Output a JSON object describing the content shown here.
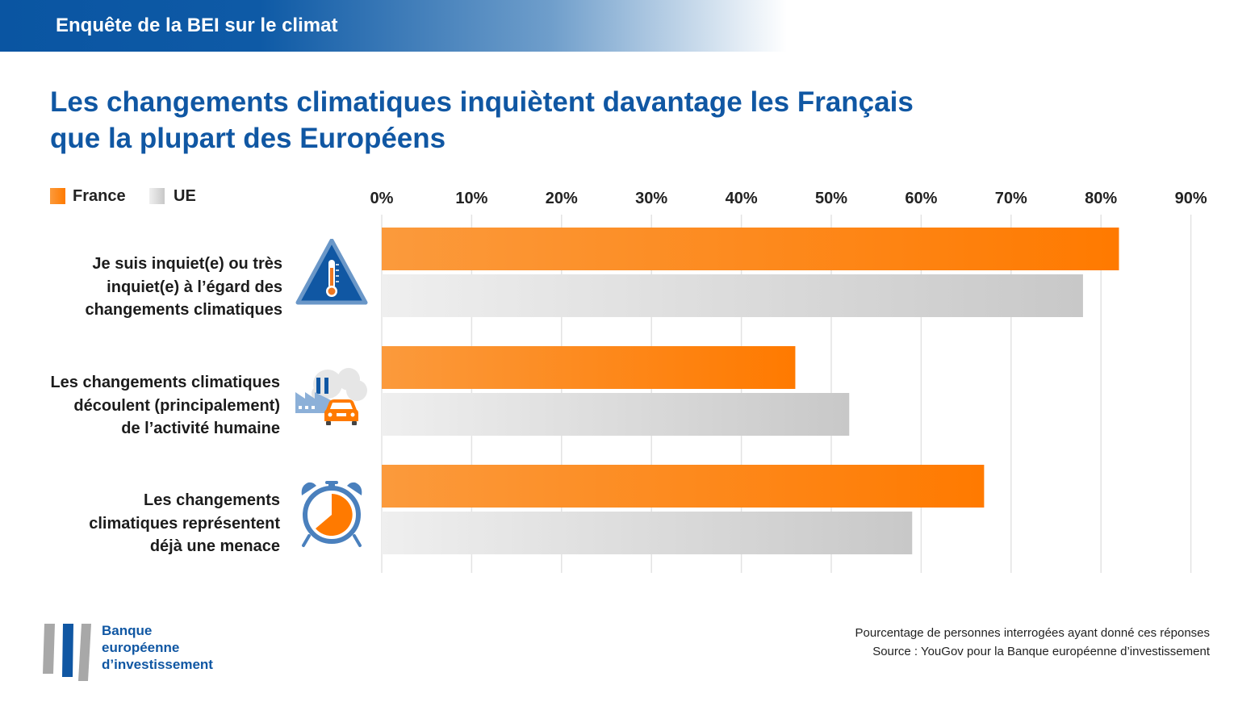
{
  "header": {
    "banner": "Enquête de la BEI sur le climat"
  },
  "title_lines": [
    "Les changements climatiques inquiètent davantage les Français",
    "que la plupart des Européens"
  ],
  "colors": {
    "france": "#ff7a00",
    "france_light": "#fb9a3c",
    "ue": "#c8c8c8",
    "ue_light": "#efefef",
    "brand": "#1057a3"
  },
  "chart_data": {
    "type": "bar",
    "orientation": "horizontal",
    "title": "Les changements climatiques inquiètent davantage les Français que la plupart des Européens",
    "categories": [
      "Je suis inquiet(e) ou très inquiet(e) à l’égard des changements climatiques",
      "Les changements climatiques découlent (principalement) de l’activité humaine",
      "Les changements climatiques représentent déjà une menace"
    ],
    "category_lines": [
      [
        "Je suis inquiet(e) ou très",
        "inquiet(e) à l’égard des",
        "changements climatiques"
      ],
      [
        "Les changements climatiques",
        "découlent (principalement)",
        "de l’activité humaine"
      ],
      [
        "Les changements",
        "climatiques représentent",
        "déjà une menace"
      ]
    ],
    "category_icons": [
      "thermometer-warning-icon",
      "factory-car-pollution-icon",
      "alarm-clock-icon"
    ],
    "series": [
      {
        "name": "France",
        "values": [
          82,
          46,
          67
        ]
      },
      {
        "name": "UE",
        "values": [
          78,
          52,
          59
        ]
      }
    ],
    "xlim": [
      0,
      90
    ],
    "ticks": [
      0,
      10,
      20,
      30,
      40,
      50,
      60,
      70,
      80,
      90
    ],
    "tick_labels": [
      "0%",
      "10%",
      "20%",
      "30%",
      "40%",
      "50%",
      "60%",
      "70%",
      "80%",
      "90%"
    ],
    "grid": true,
    "legend_position": "top-left"
  },
  "footer": {
    "note": "Pourcentage de personnes interrogées ayant donné ces réponses",
    "source": "Source : YouGov pour la Banque européenne d’investissement"
  },
  "logo": {
    "lines": [
      "Banque",
      "européenne",
      "d’investissement"
    ]
  }
}
